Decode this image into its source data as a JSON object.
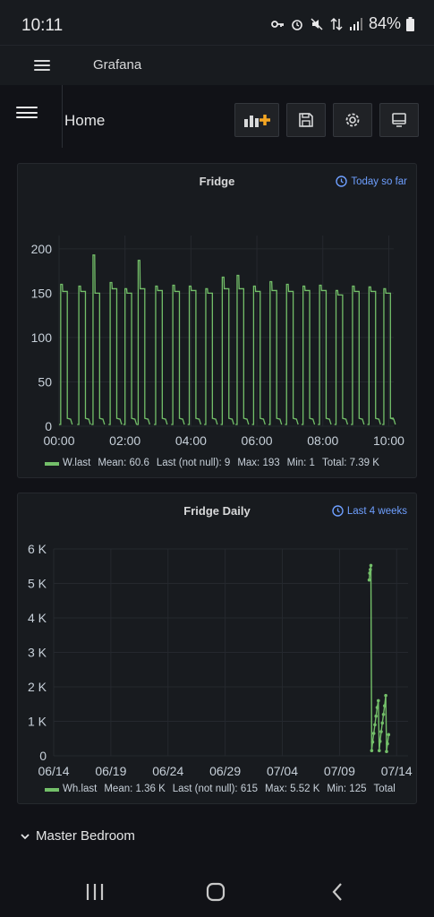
{
  "status": {
    "time": "10:11",
    "battery": "84%"
  },
  "topnav": {
    "title": "Grafana"
  },
  "page": {
    "title": "Home"
  },
  "panels": [
    {
      "title": "Fridge",
      "range": "Today so far",
      "legend": {
        "series": "W.last",
        "mean": "Mean: 60.6",
        "last": "Last (not null): 9",
        "max": "Max: 193",
        "min": "Min: 1",
        "total": "Total: 7.39 K"
      }
    },
    {
      "title": "Fridge Daily",
      "range": "Last 4 weeks",
      "legend": {
        "series": "Wh.last",
        "mean": "Mean: 1.36 K",
        "last": "Last (not null): 615",
        "max": "Max: 5.52 K",
        "min": "Min: 125",
        "total": "Total"
      }
    }
  ],
  "section": {
    "label": "Master Bedroom"
  },
  "chart_data": [
    {
      "type": "line",
      "title": "Fridge",
      "xlabel": "",
      "ylabel": "",
      "x_ticks": [
        "00:00",
        "02:00",
        "04:00",
        "06:00",
        "08:00",
        "10:00"
      ],
      "y_ticks": [
        "0",
        "50",
        "100",
        "150",
        "200"
      ],
      "xlim_hours": [
        0,
        10.15
      ],
      "ylim": [
        0,
        215
      ],
      "series": [
        {
          "name": "W.last",
          "color": "#73bf69",
          "cycles": [
            {
              "start": 0.05,
              "peak": 160,
              "plateau": 152
            },
            {
              "start": 0.6,
              "peak": 158,
              "plateau": 152
            },
            {
              "start": 1.03,
              "peak": 193,
              "plateau": 150
            },
            {
              "start": 1.55,
              "peak": 162,
              "plateau": 155
            },
            {
              "start": 2.0,
              "peak": 155,
              "plateau": 150
            },
            {
              "start": 2.4,
              "peak": 187,
              "plateau": 155
            },
            {
              "start": 2.93,
              "peak": 158,
              "plateau": 153
            },
            {
              "start": 3.45,
              "peak": 159,
              "plateau": 152
            },
            {
              "start": 3.95,
              "peak": 158,
              "plateau": 153
            },
            {
              "start": 4.45,
              "peak": 155,
              "plateau": 150
            },
            {
              "start": 4.95,
              "peak": 168,
              "plateau": 155
            },
            {
              "start": 5.4,
              "peak": 170,
              "plateau": 155
            },
            {
              "start": 5.9,
              "peak": 158,
              "plateau": 152
            },
            {
              "start": 6.4,
              "peak": 163,
              "plateau": 153
            },
            {
              "start": 6.9,
              "peak": 160,
              "plateau": 152
            },
            {
              "start": 7.4,
              "peak": 158,
              "plateau": 153
            },
            {
              "start": 7.9,
              "peak": 159,
              "plateau": 153
            },
            {
              "start": 8.4,
              "peak": 153,
              "plateau": 148
            },
            {
              "start": 8.9,
              "peak": 158,
              "plateau": 152
            },
            {
              "start": 9.4,
              "peak": 157,
              "plateau": 152
            },
            {
              "start": 9.85,
              "peak": 155,
              "plateau": 150
            }
          ],
          "last": 9
        }
      ]
    },
    {
      "type": "line",
      "title": "Fridge Daily",
      "xlabel": "",
      "ylabel": "",
      "x_ticks": [
        "06/14",
        "06/19",
        "06/24",
        "06/29",
        "07/04",
        "07/09",
        "07/14"
      ],
      "y_ticks": [
        "0",
        "1 K",
        "2 K",
        "3 K",
        "4 K",
        "5 K",
        "6 K"
      ],
      "xlim_days": [
        0,
        31
      ],
      "ylim": [
        0,
        6000
      ],
      "series": [
        {
          "name": "Wh.last",
          "color": "#73bf69",
          "points": [
            [
              27.6,
              5100
            ],
            [
              27.65,
              5300
            ],
            [
              27.7,
              5400
            ],
            [
              27.75,
              5520
            ],
            [
              27.82,
              150
            ],
            [
              27.9,
              400
            ],
            [
              28.0,
              650
            ],
            [
              28.1,
              900
            ],
            [
              28.2,
              1150
            ],
            [
              28.3,
              1400
            ],
            [
              28.4,
              1600
            ],
            [
              28.48,
              150
            ],
            [
              28.55,
              420
            ],
            [
              28.65,
              700
            ],
            [
              28.75,
              950
            ],
            [
              28.85,
              1200
            ],
            [
              28.95,
              1450
            ],
            [
              29.05,
              1750
            ],
            [
              29.12,
              125
            ],
            [
              29.2,
              350
            ],
            [
              29.3,
              615
            ]
          ]
        }
      ]
    }
  ]
}
